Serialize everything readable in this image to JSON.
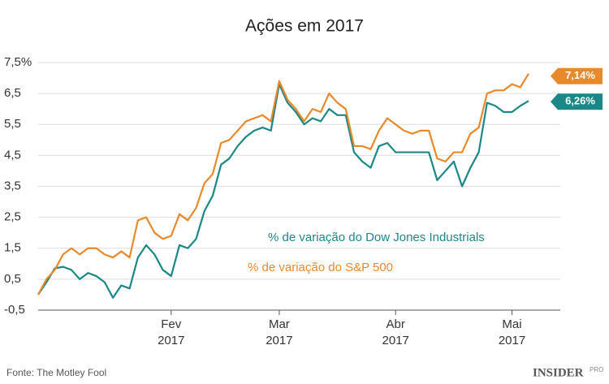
{
  "chart_data": {
    "type": "line",
    "title": "Ações em 2017",
    "categories": [
      null,
      null,
      null,
      null,
      null,
      null,
      null,
      null,
      null,
      null,
      null,
      null,
      null,
      null,
      null,
      null,
      "Fev\n2017",
      null,
      null,
      null,
      null,
      null,
      null,
      null,
      null,
      null,
      null,
      null,
      null,
      "Mar\n2017",
      null,
      null,
      null,
      null,
      null,
      null,
      null,
      null,
      null,
      null,
      null,
      null,
      null,
      "Abr\n2017",
      null,
      null,
      null,
      null,
      null,
      null,
      null,
      null,
      null,
      null,
      null,
      null,
      null,
      "Mai\n2017",
      null,
      null
    ],
    "series": [
      {
        "name": "% de variação do Dow Jones Industrials",
        "color": "#1b8787",
        "values": [
          0,
          0.4,
          0.85,
          0.9,
          0.8,
          0.5,
          0.7,
          0.6,
          0.4,
          -0.1,
          0.3,
          0.2,
          1.2,
          1.6,
          1.3,
          0.8,
          0.6,
          1.6,
          1.5,
          1.8,
          2.7,
          3.2,
          4.2,
          4.4,
          4.8,
          5.1,
          5.3,
          5.4,
          5.3,
          6.8,
          6.2,
          5.9,
          5.5,
          5.7,
          5.6,
          6.0,
          5.8,
          5.8,
          4.6,
          4.3,
          4.1,
          4.8,
          4.9,
          4.6,
          4.6,
          4.6,
          4.6,
          4.6,
          3.7,
          4.0,
          4.3,
          3.5,
          4.1,
          4.6,
          6.2,
          6.1,
          5.9,
          5.9,
          6.1,
          6.26
        ],
        "value_labels": [
          null,
          null,
          null,
          null,
          null,
          null,
          null,
          null,
          null,
          null,
          null,
          null,
          null,
          null,
          null,
          null,
          null,
          null,
          null,
          null,
          null,
          null,
          null,
          null,
          null,
          null,
          null,
          null,
          null,
          null,
          null,
          null,
          null,
          null,
          null,
          null,
          null,
          null,
          null,
          null,
          null,
          null,
          null,
          null,
          null,
          null,
          null,
          null,
          null,
          null,
          null,
          null,
          null,
          null,
          null,
          null,
          null,
          null,
          null,
          "6,26%"
        ]
      },
      {
        "name": "% de variação do S&P 500",
        "color": "#e8892b",
        "values": [
          0,
          0.5,
          0.8,
          1.3,
          1.5,
          1.3,
          1.5,
          1.5,
          1.3,
          1.2,
          1.4,
          1.2,
          2.4,
          2.5,
          2.0,
          1.8,
          1.9,
          2.6,
          2.4,
          2.8,
          3.6,
          3.9,
          4.9,
          5.0,
          5.3,
          5.6,
          5.7,
          5.8,
          5.6,
          6.9,
          6.3,
          6.0,
          5.6,
          6.0,
          5.9,
          6.5,
          6.2,
          6.0,
          4.8,
          4.8,
          4.7,
          5.3,
          5.7,
          5.5,
          5.3,
          5.2,
          5.3,
          5.3,
          4.4,
          4.3,
          4.6,
          4.6,
          5.2,
          5.4,
          6.5,
          6.6,
          6.6,
          6.8,
          6.7,
          7.14
        ],
        "value_labels": [
          null,
          null,
          null,
          null,
          null,
          null,
          null,
          null,
          null,
          null,
          null,
          null,
          null,
          null,
          null,
          null,
          null,
          null,
          null,
          null,
          null,
          null,
          null,
          null,
          null,
          null,
          null,
          null,
          null,
          null,
          null,
          null,
          null,
          null,
          null,
          null,
          null,
          null,
          null,
          null,
          null,
          null,
          null,
          null,
          null,
          null,
          null,
          null,
          null,
          null,
          null,
          null,
          null,
          null,
          null,
          null,
          null,
          null,
          null,
          "7,14%"
        ]
      }
    ],
    "ylim": [
      -0.5,
      7.5
    ],
    "yticks": [
      {
        "value": -0.5,
        "label": "-0,5"
      },
      {
        "value": 0.5,
        "label": "0,5"
      },
      {
        "value": 1.5,
        "label": "1,5"
      },
      {
        "value": 2.5,
        "label": "2,5"
      },
      {
        "value": 3.5,
        "label": "3,5"
      },
      {
        "value": 4.5,
        "label": "4,5"
      },
      {
        "value": 5.5,
        "label": "5,5"
      },
      {
        "value": 6.5,
        "label": "6,5"
      },
      {
        "value": 7.5,
        "label": "7,5%"
      }
    ],
    "grid": true,
    "source": "Fonte: The Motley Fool",
    "logo": "INSIDER",
    "logo_badge": "PRO"
  }
}
